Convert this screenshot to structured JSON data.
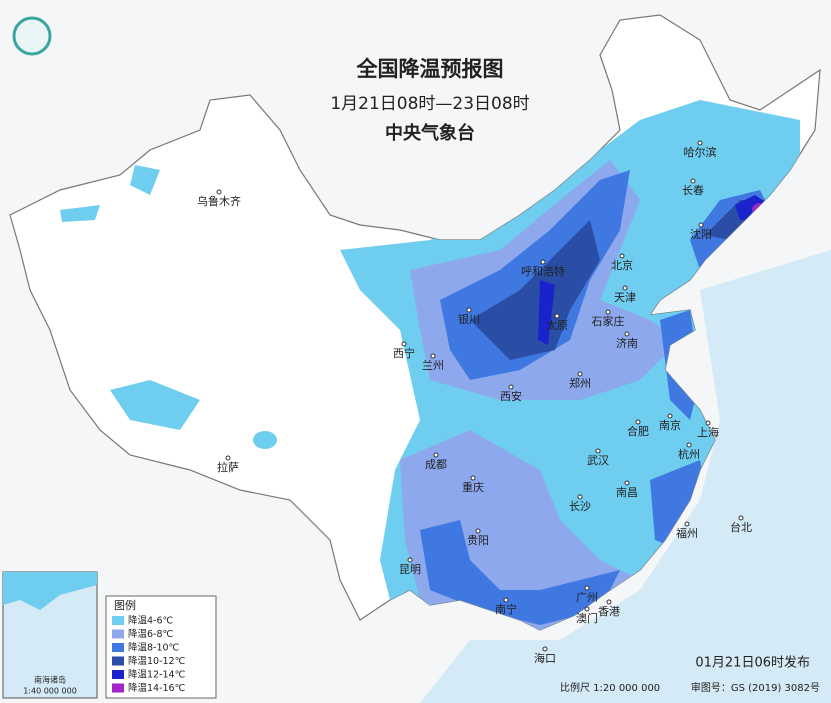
{
  "header": {
    "title": "全国降温预报图",
    "period": "1月21日08时—23日08时",
    "agency": "中央气象台"
  },
  "cities": [
    "乌鲁木齐",
    "哈尔滨",
    "长春",
    "沈阳",
    "呼和浩特",
    "北京",
    "天津",
    "银川",
    "太原",
    "石家庄",
    "西宁",
    "兰州",
    "济南",
    "郑州",
    "西安",
    "合肥",
    "南京",
    "上海",
    "拉萨",
    "成都",
    "武汉",
    "杭州",
    "重庆",
    "南昌",
    "长沙",
    "贵阳",
    "台北",
    "福州",
    "昆明",
    "广州",
    "南宁",
    "香港",
    "澳门",
    "海口"
  ],
  "legend": {
    "title": "图例",
    "items": [
      {
        "label": "降温4-6℃",
        "color": "#6fcdf0"
      },
      {
        "label": "降温6-8℃",
        "color": "#8da8ec"
      },
      {
        "label": "降温8-10℃",
        "color": "#3f78e0"
      },
      {
        "label": "降温10-12℃",
        "color": "#2a4ea6"
      },
      {
        "label": "降温12-14℃",
        "color": "#1a22cc"
      },
      {
        "label": "降温14-16℃",
        "color": "#a224c4"
      }
    ]
  },
  "inset": {
    "label": "南海诸岛",
    "scale": "1:40 000 000"
  },
  "footer": {
    "issued": "01月21日06时发布",
    "scale": "比例尺 1:20 000 000",
    "approval": "审图号：GS (2019) 3082号"
  }
}
